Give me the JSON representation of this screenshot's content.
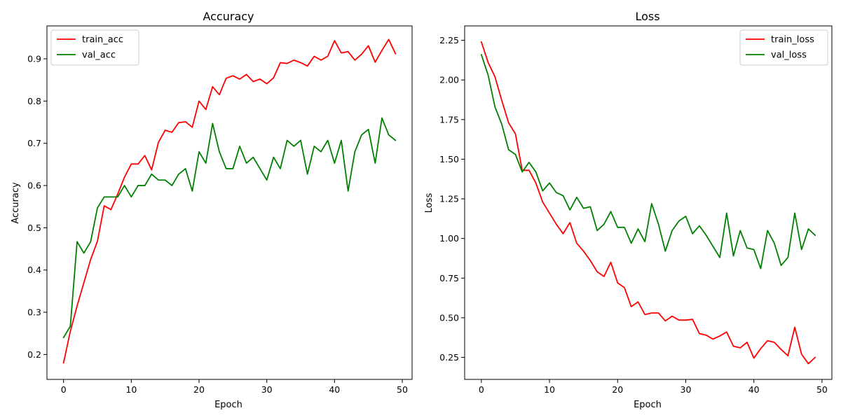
{
  "chart_data": [
    {
      "type": "line",
      "title": "Accuracy",
      "xlabel": "Epoch",
      "ylabel": "Accuracy",
      "xlim": [
        -2.45,
        51.45
      ],
      "ylim": [
        0.141,
        0.978
      ],
      "xticks": [
        0,
        10,
        20,
        30,
        40,
        50
      ],
      "yticks": [
        0.2,
        0.3,
        0.4,
        0.5,
        0.6,
        0.7,
        0.8,
        0.9
      ],
      "xtick_labels": [
        "0",
        "10",
        "20",
        "30",
        "40",
        "50"
      ],
      "ytick_labels": [
        "0.2",
        "0.3",
        "0.4",
        "0.5",
        "0.6",
        "0.7",
        "0.8",
        "0.9"
      ],
      "legend_position": "top-left",
      "grid": false,
      "x": [
        0,
        1,
        2,
        3,
        4,
        5,
        6,
        7,
        8,
        9,
        10,
        11,
        12,
        13,
        14,
        15,
        16,
        17,
        18,
        19,
        20,
        21,
        22,
        23,
        24,
        25,
        26,
        27,
        28,
        29,
        30,
        31,
        32,
        33,
        34,
        35,
        36,
        37,
        38,
        39,
        40,
        41,
        42,
        43,
        44,
        45,
        46,
        47,
        48,
        49
      ],
      "series": [
        {
          "name": "train_acc",
          "color": "#ff0000",
          "values": [
            0.18,
            0.255,
            0.315,
            0.37,
            0.425,
            0.468,
            0.552,
            0.543,
            0.58,
            0.62,
            0.651,
            0.651,
            0.671,
            0.637,
            0.702,
            0.731,
            0.726,
            0.749,
            0.751,
            0.738,
            0.8,
            0.78,
            0.834,
            0.815,
            0.854,
            0.86,
            0.852,
            0.863,
            0.846,
            0.852,
            0.841,
            0.855,
            0.891,
            0.889,
            0.897,
            0.891,
            0.883,
            0.906,
            0.897,
            0.906,
            0.943,
            0.914,
            0.917,
            0.897,
            0.911,
            0.931,
            0.892,
            0.92,
            0.946,
            0.912
          ]
        },
        {
          "name": "val_acc",
          "color": "#008000",
          "values": [
            0.24,
            0.267,
            0.467,
            0.44,
            0.467,
            0.547,
            0.573,
            0.573,
            0.573,
            0.6,
            0.573,
            0.6,
            0.6,
            0.627,
            0.613,
            0.613,
            0.6,
            0.627,
            0.64,
            0.587,
            0.68,
            0.653,
            0.747,
            0.68,
            0.64,
            0.64,
            0.693,
            0.653,
            0.667,
            0.64,
            0.613,
            0.667,
            0.64,
            0.707,
            0.693,
            0.707,
            0.627,
            0.693,
            0.68,
            0.707,
            0.653,
            0.707,
            0.587,
            0.68,
            0.72,
            0.733,
            0.653,
            0.76,
            0.72,
            0.707
          ]
        }
      ]
    },
    {
      "type": "line",
      "title": "Loss",
      "xlabel": "Epoch",
      "ylabel": "Loss",
      "xlim": [
        -2.45,
        51.45
      ],
      "ylim": [
        0.111,
        2.341
      ],
      "xticks": [
        0,
        10,
        20,
        30,
        40,
        50
      ],
      "yticks": [
        0.25,
        0.5,
        0.75,
        1.0,
        1.25,
        1.5,
        1.75,
        2.0,
        2.25
      ],
      "xtick_labels": [
        "0",
        "10",
        "20",
        "30",
        "40",
        "50"
      ],
      "ytick_labels": [
        "0.25",
        "0.50",
        "0.75",
        "1.00",
        "1.25",
        "1.50",
        "1.75",
        "2.00",
        "2.25"
      ],
      "legend_position": "top-right",
      "grid": false,
      "x": [
        0,
        1,
        2,
        3,
        4,
        5,
        6,
        7,
        8,
        9,
        10,
        11,
        12,
        13,
        14,
        15,
        16,
        17,
        18,
        19,
        20,
        21,
        22,
        23,
        24,
        25,
        26,
        27,
        28,
        29,
        30,
        31,
        32,
        33,
        34,
        35,
        36,
        37,
        38,
        39,
        40,
        41,
        42,
        43,
        44,
        45,
        46,
        47,
        48,
        49
      ],
      "series": [
        {
          "name": "train_loss",
          "color": "#ff0000",
          "values": [
            2.24,
            2.11,
            2.02,
            1.87,
            1.73,
            1.66,
            1.43,
            1.43,
            1.35,
            1.23,
            1.16,
            1.09,
            1.03,
            1.1,
            0.97,
            0.92,
            0.86,
            0.79,
            0.76,
            0.85,
            0.72,
            0.69,
            0.57,
            0.6,
            0.52,
            0.53,
            0.53,
            0.48,
            0.51,
            0.485,
            0.485,
            0.49,
            0.4,
            0.39,
            0.365,
            0.385,
            0.41,
            0.32,
            0.31,
            0.345,
            0.245,
            0.305,
            0.355,
            0.345,
            0.3,
            0.26,
            0.44,
            0.27,
            0.21,
            0.25
          ]
        },
        {
          "name": "val_loss",
          "color": "#008000",
          "values": [
            2.16,
            2.03,
            1.83,
            1.72,
            1.56,
            1.53,
            1.42,
            1.48,
            1.42,
            1.3,
            1.35,
            1.29,
            1.27,
            1.18,
            1.26,
            1.19,
            1.2,
            1.05,
            1.09,
            1.17,
            1.07,
            1.07,
            0.97,
            1.06,
            0.98,
            1.22,
            1.09,
            0.92,
            1.05,
            1.11,
            1.14,
            1.03,
            1.08,
            1.02,
            0.95,
            0.88,
            1.16,
            0.89,
            1.05,
            0.94,
            0.93,
            0.81,
            1.05,
            0.97,
            0.83,
            0.88,
            1.16,
            0.93,
            1.06,
            1.02
          ]
        }
      ]
    }
  ]
}
